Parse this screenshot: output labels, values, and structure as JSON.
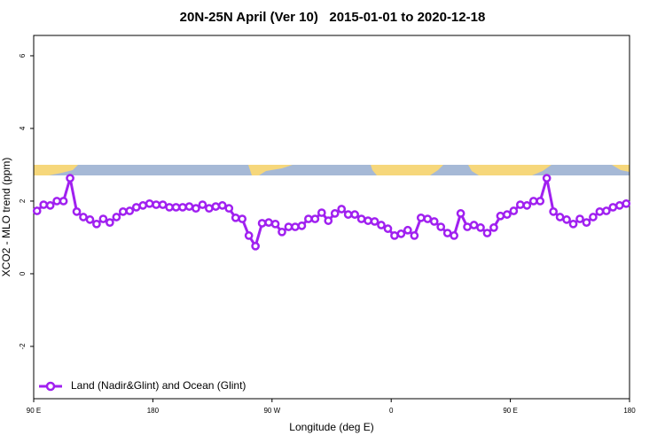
{
  "chart_data": {
    "type": "line",
    "title": "20N-25N April (Ver 10)   2015-01-01 to 2020-12-18",
    "x_label": "Longitude (deg E)",
    "y_label": "XCO2 - MLO trend (ppm)",
    "x": [
      92.5,
      97.5,
      102.5,
      107.5,
      112.5,
      117.5,
      122.5,
      127.5,
      132.5,
      137.5,
      142.5,
      147.5,
      152.5,
      157.5,
      162.5,
      167.5,
      172.5,
      177.5,
      182.5,
      187.5,
      192.5,
      197.5,
      202.5,
      207.5,
      212.5,
      217.5,
      222.5,
      227.5,
      232.5,
      237.5,
      242.5,
      247.5,
      252.5,
      257.5,
      262.5,
      267.5,
      272.5,
      277.5,
      282.5,
      287.5,
      292.5,
      297.5,
      302.5,
      307.5,
      312.5,
      317.5,
      322.5,
      327.5,
      332.5,
      337.5,
      342.5,
      347.5,
      352.5,
      357.5,
      362.5,
      367.5,
      372.5,
      377.5,
      382.5,
      387.5,
      392.5,
      397.5,
      402.5,
      407.5,
      412.5,
      417.5,
      422.5,
      427.5,
      432.5,
      437.5,
      442.5,
      447.5,
      452.5,
      457.5,
      462.5,
      467.5,
      472.5,
      477.5,
      482.5,
      487.5,
      492.5,
      497.5,
      502.5,
      507.5,
      512.5,
      517.5,
      522.5,
      527.5,
      532.5,
      537.5
    ],
    "series": [
      {
        "name": "Land (Nadir&Glint) and Ocean (Glint)",
        "color": "#a020f0",
        "values": [
          1.73,
          1.9,
          1.88,
          2.0,
          2.0,
          2.63,
          1.71,
          1.56,
          1.49,
          1.37,
          1.51,
          1.41,
          1.56,
          1.71,
          1.73,
          1.83,
          1.88,
          1.93,
          1.9,
          1.9,
          1.83,
          1.83,
          1.83,
          1.85,
          1.8,
          1.9,
          1.8,
          1.85,
          1.88,
          1.8,
          1.54,
          1.51,
          1.05,
          0.76,
          1.39,
          1.41,
          1.37,
          1.15,
          1.29,
          1.29,
          1.32,
          1.51,
          1.51,
          1.68,
          1.46,
          1.66,
          1.78,
          1.63,
          1.63,
          1.51,
          1.46,
          1.44,
          1.34,
          1.24,
          1.05,
          1.1,
          1.2,
          1.05,
          1.54,
          1.51,
          1.44,
          1.29,
          1.12,
          1.05,
          1.66,
          1.29,
          1.34,
          1.27,
          1.12,
          1.27,
          1.59,
          1.63,
          1.73,
          1.9,
          1.88,
          2.0,
          2.0,
          2.63,
          1.71,
          1.56,
          1.49,
          1.37,
          1.51,
          1.41,
          1.56,
          1.71,
          1.73,
          1.83,
          1.88,
          1.93
        ]
      }
    ],
    "xlim": [
      90,
      540
    ],
    "xticks": [
      {
        "value": 90,
        "label": "90 E"
      },
      180,
      {
        "value": 270,
        "label": "90 W"
      },
      {
        "value": 360,
        "label": "0"
      },
      {
        "value": 450,
        "label": "90 E"
      },
      {
        "value": 540,
        "label": "180"
      }
    ],
    "ylim": [
      -3.44,
      6.56
    ],
    "yticks": [
      -2,
      0,
      2,
      4,
      6
    ],
    "legend": "bottom-left"
  }
}
